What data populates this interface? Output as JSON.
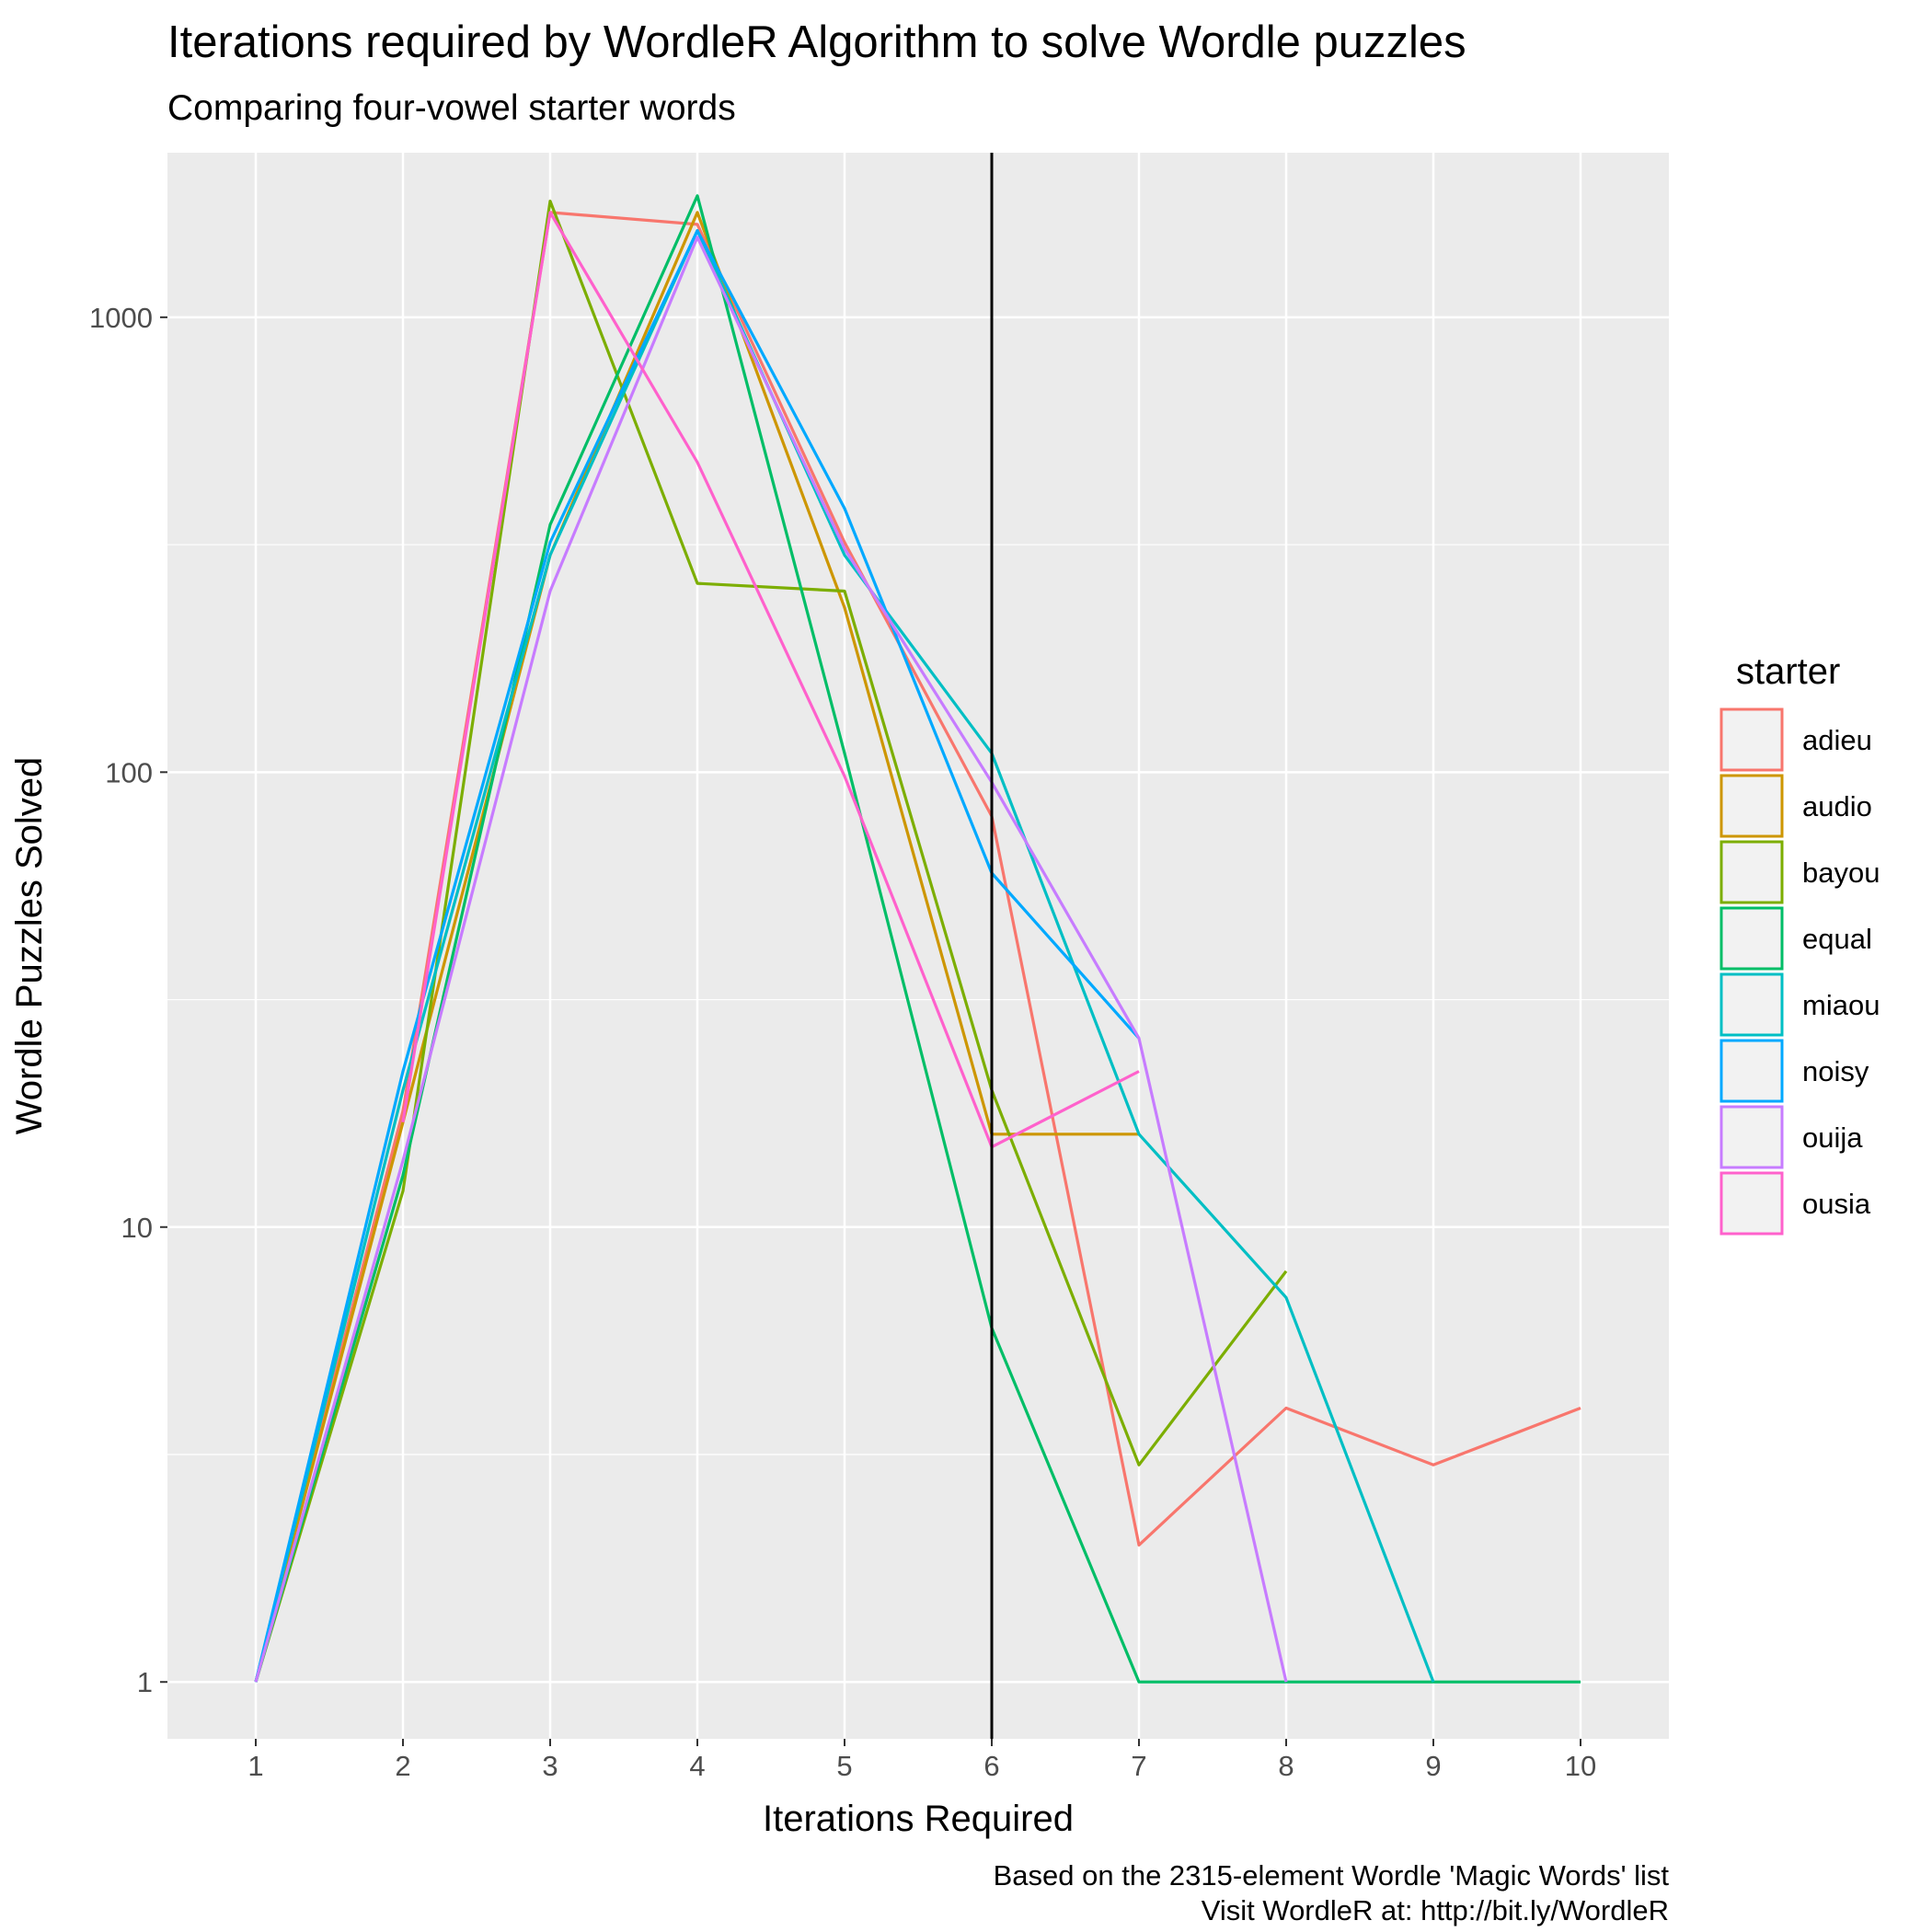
{
  "chart_data": {
    "type": "line",
    "title": "Iterations required by WordleR Algorithm to solve Wordle puzzles",
    "subtitle": "Comparing four-vowel starter words",
    "xlabel": "Iterations Required",
    "ylabel": "Wordle Puzzles Solved",
    "caption_lines": [
      "Based on the 2315-element Wordle 'Magic Words' list",
      "Visit WordleR at: http://bit.ly/WordleR"
    ],
    "x_scale": "linear",
    "y_scale": "log10",
    "xlim": [
      0.4,
      10.6
    ],
    "ylim": [
      0.75,
      2300
    ],
    "x_ticks": [
      1,
      2,
      3,
      4,
      5,
      6,
      7,
      8,
      9,
      10
    ],
    "x_tick_labels": [
      "1",
      "2",
      "3",
      "4",
      "5",
      "6",
      "7",
      "8",
      "9",
      "10"
    ],
    "y_ticks": [
      1,
      10,
      100,
      1000
    ],
    "y_tick_labels": [
      "1",
      "10",
      "100",
      "1000"
    ],
    "grid": true,
    "reference_line": {
      "axis": "x",
      "value": 6,
      "color": "#000000"
    },
    "legend": {
      "title": "starter",
      "position": "right"
    },
    "colors": {
      "panel_background": "#ebebeb",
      "grid_line": "#ffffff",
      "tick_text": "#4d4d4d",
      "text": "#000000"
    },
    "series": [
      {
        "name": "adieu",
        "color": "#F8766D",
        "x": [
          1,
          2,
          3,
          4,
          5,
          6,
          7,
          8,
          9,
          10
        ],
        "y": [
          1,
          18,
          1700,
          1600,
          320,
          80,
          2,
          4,
          3,
          4
        ]
      },
      {
        "name": "audio",
        "color": "#CD9600",
        "x": [
          1,
          2,
          3,
          4,
          5,
          6,
          7
        ],
        "y": [
          1,
          17,
          300,
          1700,
          230,
          16,
          16
        ]
      },
      {
        "name": "bayou",
        "color": "#7CAE00",
        "x": [
          1,
          2,
          3,
          4,
          5,
          6,
          7,
          8
        ],
        "y": [
          1,
          12,
          1800,
          260,
          250,
          20,
          3,
          8
        ]
      },
      {
        "name": "equal",
        "color": "#00BE67",
        "x": [
          1,
          2,
          3,
          4,
          5,
          6,
          7,
          8,
          9,
          10
        ],
        "y": [
          1,
          13,
          350,
          1850,
          110,
          6,
          1,
          1,
          1,
          1
        ]
      },
      {
        "name": "miaou",
        "color": "#00BFC4",
        "x": [
          1,
          2,
          3,
          4,
          5,
          6,
          7,
          8,
          9
        ],
        "y": [
          1,
          20,
          300,
          1550,
          300,
          110,
          16,
          7,
          1
        ]
      },
      {
        "name": "noisy",
        "color": "#00A9FF",
        "x": [
          1,
          2,
          3,
          4,
          5,
          6,
          7
        ],
        "y": [
          1,
          22,
          320,
          1550,
          380,
          60,
          26
        ]
      },
      {
        "name": "ouija",
        "color": "#C77CFF",
        "x": [
          1,
          2,
          3,
          4,
          5,
          6,
          7,
          8
        ],
        "y": [
          1,
          14,
          250,
          1500,
          310,
          95,
          26,
          1
        ]
      },
      {
        "name": "ousia",
        "color": "#FF61CC",
        "x": [
          2,
          3,
          4,
          5,
          6,
          7
        ],
        "y": [
          17,
          1700,
          480,
          98,
          15,
          22
        ]
      }
    ]
  }
}
